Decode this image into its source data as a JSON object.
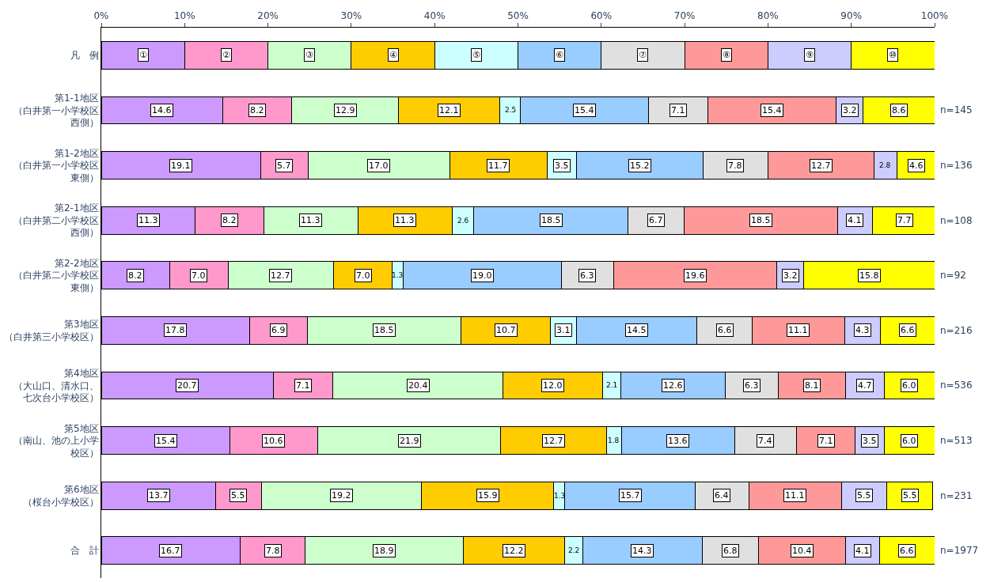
{
  "chart_data": {
    "type": "bar",
    "orientation": "horizontal",
    "stacked": true,
    "categories": [
      "凡　例",
      "第1-1地区（白井第一小学校区西側）",
      "第1-2地区（白井第一小学校区東側）",
      "第2-1地区（白井第二小学校区西側）",
      "第2-2地区（白井第二小学校区東側）",
      "第3地区（白井第三小学校区）",
      "第4地区（大山口、清水口、七次台小学校区）",
      "第5地区（南山、池の上小学校区）",
      "第6地区（桜台小学校区）",
      "合　計"
    ],
    "xlim": [
      0,
      100
    ],
    "xticks": [
      {
        "value": 0,
        "label": "0%"
      },
      {
        "value": 10,
        "label": "10%"
      },
      {
        "value": 20,
        "label": "20%"
      },
      {
        "value": 30,
        "label": "30%"
      },
      {
        "value": 40,
        "label": "40%"
      },
      {
        "value": 50,
        "label": "50%"
      },
      {
        "value": 60,
        "label": "60%"
      },
      {
        "value": 70,
        "label": "70%"
      },
      {
        "value": 80,
        "label": "80%"
      },
      {
        "value": 90,
        "label": "90%"
      },
      {
        "value": 100,
        "label": "100%"
      }
    ],
    "grid": false,
    "series": [
      {
        "color": "#cc99ff",
        "values": [
          10,
          14.6,
          19.1,
          11.3,
          8.2,
          17.8,
          20.7,
          15.4,
          13.7,
          16.7
        ],
        "value_labels": [
          "①",
          "14.6",
          "19.1",
          "11.3",
          "8.2",
          "17.8",
          "20.7",
          "15.4",
          "13.7",
          "16.7"
        ]
      },
      {
        "color": "#ff99cc",
        "values": [
          10,
          8.2,
          5.7,
          8.2,
          7.0,
          6.9,
          7.1,
          10.6,
          5.5,
          7.8
        ],
        "value_labels": [
          "②",
          "8.2",
          "5.7",
          "8.2",
          "7.0",
          "6.9",
          "7.1",
          "10.6",
          "5.5",
          "7.8"
        ]
      },
      {
        "color": "#ccffcc",
        "values": [
          10,
          12.9,
          17.0,
          11.3,
          12.7,
          18.5,
          20.4,
          21.9,
          19.2,
          18.9
        ],
        "value_labels": [
          "③",
          "12.9",
          "17.0",
          "11.3",
          "12.7",
          "18.5",
          "20.4",
          "21.9",
          "19.2",
          "18.9"
        ]
      },
      {
        "color": "#ffcc00",
        "values": [
          10,
          12.1,
          11.7,
          11.3,
          7.0,
          10.7,
          12.0,
          12.7,
          15.9,
          12.2
        ],
        "value_labels": [
          "④",
          "12.1",
          "11.7",
          "11.3",
          "7.0",
          "10.7",
          "12.0",
          "12.7",
          "15.9",
          "12.2"
        ]
      },
      {
        "color": "#ccffff",
        "values": [
          10,
          2.5,
          3.5,
          2.6,
          1.3,
          3.1,
          2.1,
          1.8,
          1.3,
          2.2
        ],
        "value_labels": [
          "⑤",
          "2.5",
          "3.5",
          "2.6",
          "1.3",
          "3.1",
          "2.1",
          "1.8",
          "1.3",
          "2.2"
        ]
      },
      {
        "color": "#99ccff",
        "values": [
          10,
          15.4,
          15.2,
          18.5,
          19.0,
          14.5,
          12.6,
          13.6,
          15.7,
          14.3
        ],
        "value_labels": [
          "⑥",
          "15.4",
          "15.2",
          "18.5",
          "19.0",
          "14.5",
          "12.6",
          "13.6",
          "15.7",
          "14.3"
        ]
      },
      {
        "color": "#e0e0e0",
        "values": [
          10,
          7.1,
          7.8,
          6.7,
          6.3,
          6.6,
          6.3,
          7.4,
          6.4,
          6.8
        ],
        "value_labels": [
          "⑦",
          "7.1",
          "7.8",
          "6.7",
          "6.3",
          "6.6",
          "6.3",
          "7.4",
          "6.4",
          "6.8"
        ]
      },
      {
        "color": "#ff9999",
        "values": [
          10,
          15.4,
          12.7,
          18.5,
          19.6,
          11.1,
          8.1,
          7.1,
          11.1,
          10.4
        ],
        "value_labels": [
          "⑧",
          "15.4",
          "12.7",
          "18.5",
          "19.6",
          "11.1",
          "8.1",
          "7.1",
          "11.1",
          "10.4"
        ]
      },
      {
        "color": "#ccccff",
        "values": [
          10,
          3.2,
          2.8,
          4.1,
          3.2,
          4.3,
          4.7,
          3.5,
          5.5,
          4.1
        ],
        "value_labels": [
          "⑨",
          "3.2",
          "2.8",
          "4.1",
          "3.2",
          "4.3",
          "4.7",
          "3.5",
          "5.5",
          "4.1"
        ]
      },
      {
        "color": "#ffff00",
        "values": [
          10,
          8.6,
          4.6,
          7.7,
          15.8,
          6.6,
          6.0,
          6.0,
          5.5,
          6.6
        ],
        "value_labels": [
          "⑩",
          "8.6",
          "4.6",
          "7.7",
          "15.8",
          "6.6",
          "6.0",
          "6.0",
          "5.5",
          "6.6"
        ]
      }
    ],
    "annotations": [
      "n=145",
      "n=136",
      "n=108",
      "n=92",
      "n=216",
      "n=536",
      "n=513",
      "n=231",
      "n=1977"
    ]
  }
}
